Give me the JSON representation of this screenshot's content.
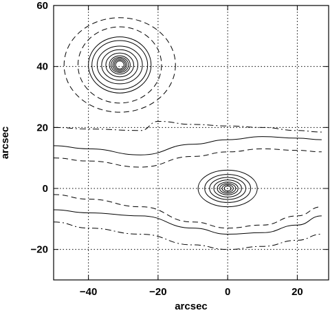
{
  "chart_data": {
    "type": "contour",
    "xlabel": "arcsec",
    "ylabel": "arcsec",
    "xlim": [
      -50,
      29
    ],
    "ylim": [
      -30,
      60
    ],
    "xticks": [
      -40,
      -20,
      0,
      20
    ],
    "yticks": [
      -20,
      0,
      20,
      40,
      60
    ],
    "grid": true,
    "grid_style": "dotted",
    "grid_x": [
      -40,
      -20,
      0,
      20
    ],
    "grid_y": [
      -20,
      0,
      20,
      40
    ],
    "line_color": "#000000",
    "background": "#ffffff",
    "sources": [
      {
        "center": [
          -31,
          40.5
        ],
        "solid_levels": [
          {
            "rx": 1.2,
            "ry": 1.3
          },
          {
            "rx": 1.6,
            "ry": 1.7
          },
          {
            "rx": 2.0,
            "ry": 2.1
          },
          {
            "rx": 2.5,
            "ry": 2.5
          },
          {
            "rx": 3.0,
            "ry": 3.0
          },
          {
            "rx": 4.0,
            "ry": 3.9
          },
          {
            "rx": 5.2,
            "ry": 5.0
          },
          {
            "rx": 6.5,
            "ry": 6.2
          },
          {
            "rx": 8.0,
            "ry": 8.0
          },
          {
            "rx": 9.0,
            "ry": 9.2
          }
        ],
        "dashed_levels": [
          {
            "rx": 12.0,
            "ry": 12.5
          },
          {
            "rx": 16.0,
            "ry": 15.5
          }
        ]
      },
      {
        "center": [
          0,
          0
        ],
        "solid_levels": [
          {
            "rx": 1.0,
            "ry": 0.8
          },
          {
            "rx": 1.6,
            "ry": 1.2
          },
          {
            "rx": 2.3,
            "ry": 1.6
          },
          {
            "rx": 3.0,
            "ry": 2.1
          },
          {
            "rx": 4.0,
            "ry": 2.8
          },
          {
            "rx": 5.2,
            "ry": 3.6
          },
          {
            "rx": 6.6,
            "ry": 4.6
          },
          {
            "rx": 8.5,
            "ry": 6.0
          }
        ]
      }
    ],
    "envelope_contours": [
      {
        "style": "solid",
        "points": [
          [
            -50,
            14
          ],
          [
            -40,
            13
          ],
          [
            -25,
            11
          ],
          [
            -10,
            14.5
          ],
          [
            0,
            16
          ],
          [
            10,
            17
          ],
          [
            20,
            16.5
          ],
          [
            27,
            16
          ]
        ]
      },
      {
        "style": "dashed",
        "points": [
          [
            -50,
            10
          ],
          [
            -40,
            9
          ],
          [
            -25,
            7
          ],
          [
            -10,
            10.5
          ],
          [
            0,
            12
          ],
          [
            10,
            13
          ],
          [
            20,
            12.5
          ],
          [
            27,
            12
          ]
        ]
      },
      {
        "style": "dashdot",
        "points": [
          [
            -50,
            20
          ],
          [
            -40,
            19.5
          ],
          [
            -25,
            19
          ],
          [
            -20,
            22
          ],
          [
            -10,
            21
          ],
          [
            0,
            20.5
          ],
          [
            10,
            20
          ],
          [
            20,
            19
          ],
          [
            27,
            18.5
          ]
        ]
      },
      {
        "style": "solid",
        "points": [
          [
            -50,
            -7
          ],
          [
            -40,
            -8
          ],
          [
            -25,
            -9
          ],
          [
            -10,
            -13
          ],
          [
            0,
            -15
          ],
          [
            10,
            -14.5
          ],
          [
            20,
            -12
          ],
          [
            27,
            -9
          ]
        ]
      },
      {
        "style": "dashed",
        "points": [
          [
            -50,
            -2
          ],
          [
            -40,
            -3.5
          ],
          [
            -25,
            -6
          ],
          [
            -10,
            -11
          ],
          [
            0,
            -13
          ],
          [
            10,
            -12
          ],
          [
            20,
            -9
          ],
          [
            27,
            -6
          ]
        ]
      },
      {
        "style": "dashdot",
        "points": [
          [
            -50,
            -11
          ],
          [
            -40,
            -13
          ],
          [
            -25,
            -15
          ],
          [
            -10,
            -18.5
          ],
          [
            0,
            -20
          ],
          [
            10,
            -19
          ],
          [
            20,
            -17
          ],
          [
            27,
            -15
          ]
        ]
      }
    ]
  }
}
